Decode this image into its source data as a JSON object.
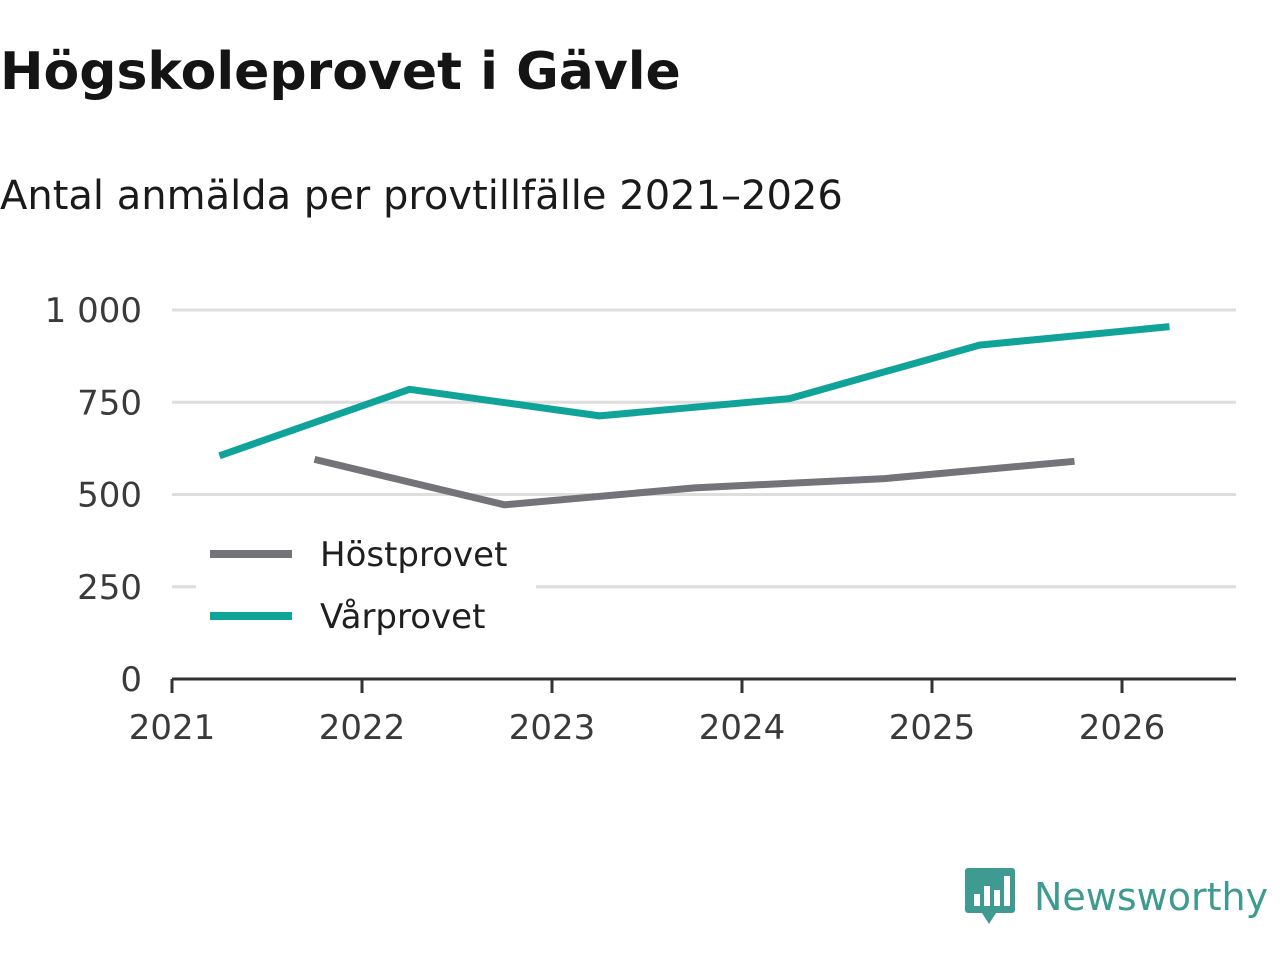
{
  "title": "Högskoleprovet i Gävle",
  "subtitle": "Antal anmälda per provtillfälle 2021–2026",
  "brand": "Newsworthy",
  "colors": {
    "hostprovet": "#747379",
    "varprovet": "#10a399",
    "grid": "#dedede",
    "axis": "#333333",
    "brand": "#3f9b91"
  },
  "chart_data": {
    "type": "line",
    "title": "Högskoleprovet i Gävle",
    "subtitle": "Antal anmälda per provtillfälle 2021–2026",
    "xlabel": "",
    "ylabel": "",
    "xlim": [
      2021,
      2026.6
    ],
    "ylim": [
      0,
      1000
    ],
    "x_ticks": [
      2021,
      2022,
      2023,
      2024,
      2025,
      2026
    ],
    "x_tick_labels": [
      "2021",
      "2022",
      "2023",
      "2024",
      "2025",
      "2026"
    ],
    "y_ticks": [
      0,
      250,
      500,
      750,
      1000
    ],
    "y_tick_labels": [
      "0",
      "250",
      "500",
      "750",
      "1 000"
    ],
    "grid": true,
    "legend_position": "bottom-left",
    "series": [
      {
        "key": "hostprovet",
        "name": "Höstprovet",
        "x": [
          2021.75,
          2022.75,
          2023.75,
          2024.75,
          2025.75
        ],
        "values": [
          595,
          472,
          518,
          543,
          590
        ]
      },
      {
        "key": "varprovet",
        "name": "Vårprovet",
        "x": [
          2021.25,
          2022.25,
          2023.25,
          2024.25,
          2025.25,
          2026.25
        ],
        "values": [
          605,
          785,
          713,
          760,
          905,
          955
        ]
      }
    ]
  }
}
